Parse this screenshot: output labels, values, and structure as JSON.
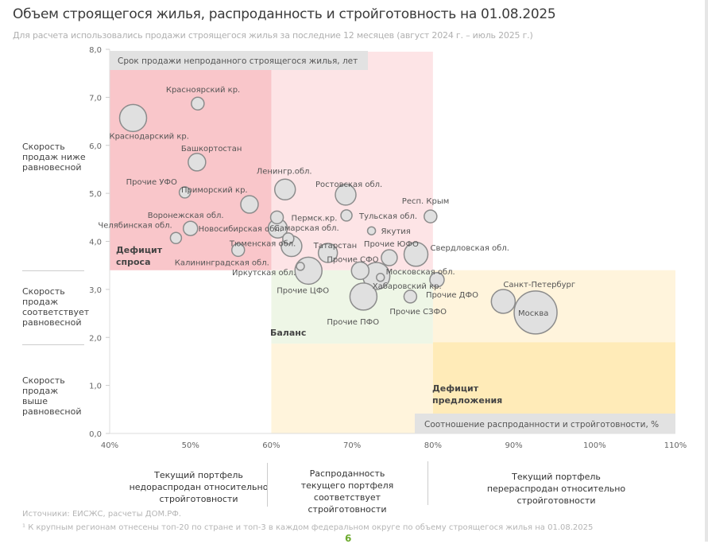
{
  "title": "Объем строящегося жилья, распроданность и стройготовность на 01.08.2025",
  "subtitle": "Для расчета использовались продажи строящегося жилья за последние 12 месяцев (август 2024 г. – июль 2025 г.)",
  "y_zone_labels": [
    "Скорость продаж ниже равновесной",
    "Скорость продаж соответствует равновесной",
    "Скорость продаж выше равновесной"
  ],
  "x_zone_labels": [
    "Текущий портфель недораспродан относительно стройготовности",
    "Распроданность текущего портфеля соответствует стройготовности",
    "Текущий портфель перераспродан относительно стройготовности"
  ],
  "footnotes": {
    "sources": "Источники: ЕИСЖС, расчеты ДОМ.РФ.",
    "note": "¹ К крупным регионам отнесены топ-20 по стране и топ-3 в каждом федеральном округе по объему строящегося жилья на 01.08.2025"
  },
  "page_number": "6",
  "chart_data": {
    "type": "scatter",
    "subtype": "bubble",
    "ylabel": "Срок продажи непроданного строящегося жилья, лет",
    "xlabel": "Соотношение распроданности и стройготовности, %",
    "xlim": [
      40,
      110
    ],
    "ylim": [
      0,
      8
    ],
    "x_ticks": [
      "40%",
      "50%",
      "60%",
      "70%",
      "80%",
      "90%",
      "100%",
      "110%"
    ],
    "y_ticks": [
      "0,0",
      "1,0",
      "2,0",
      "3,0",
      "4,0",
      "5,0",
      "6,0",
      "7,0",
      "8,0"
    ],
    "grid": false,
    "zones": [
      {
        "label": "",
        "x": [
          40,
          80
        ],
        "y": [
          3.4,
          7.95
        ],
        "color": "#fde4e6"
      },
      {
        "label": "Дефицит спроса",
        "x": [
          40,
          60
        ],
        "y": [
          3.4,
          7.6
        ],
        "color": "#f9c6ca"
      },
      {
        "label": "Баланс",
        "x": [
          60,
          80
        ],
        "y": [
          1.87,
          3.4
        ],
        "color": "#eef6e6"
      },
      {
        "label": "",
        "x": [
          60,
          80
        ],
        "y": [
          0,
          1.87
        ],
        "color": "#fff4dc"
      },
      {
        "label": "",
        "x": [
          80,
          110
        ],
        "y": [
          1.9,
          3.4
        ],
        "color": "#fff4dc"
      },
      {
        "label": "Дефицит предложения",
        "x": [
          80,
          110
        ],
        "y": [
          0,
          1.9
        ],
        "color": "#ffebb8"
      }
    ],
    "bubble_color": "#e0e0e0",
    "bubble_stroke": "#8c8c8c",
    "points": [
      {
        "name": "Краснодарский кр.",
        "x": 42.9,
        "y": 6.57,
        "size": 17
      },
      {
        "name": "Красноярский кр.",
        "x": 50.9,
        "y": 6.87,
        "size": 8
      },
      {
        "name": "Башкортостан",
        "x": 50.8,
        "y": 5.65,
        "size": 11
      },
      {
        "name": "Прочие УФО",
        "x": 49.3,
        "y": 5.02,
        "size": 7
      },
      {
        "name": "Приморский кр.",
        "x": 57.3,
        "y": 4.77,
        "size": 11
      },
      {
        "name": "Ленингр.обл.",
        "x": 61.7,
        "y": 5.08,
        "size": 13
      },
      {
        "name": "Ростовская обл.",
        "x": 69.2,
        "y": 4.97,
        "size": 13
      },
      {
        "name": "Пермск.кр.",
        "x": 60.7,
        "y": 4.5,
        "size": 8
      },
      {
        "name": "Тульская обл.",
        "x": 69.3,
        "y": 4.54,
        "size": 7
      },
      {
        "name": "Респ. Крым",
        "x": 79.7,
        "y": 4.52,
        "size": 8
      },
      {
        "name": "Якутия",
        "x": 72.4,
        "y": 4.22,
        "size": 5
      },
      {
        "name": "Новосибирская обл.",
        "x": 60.8,
        "y": 4.27,
        "size": 12
      },
      {
        "name": "Воронежская обл.",
        "x": 50.0,
        "y": 4.27,
        "size": 9
      },
      {
        "name": "Челябинская обл.",
        "x": 48.2,
        "y": 4.07,
        "size": 7
      },
      {
        "name": "Самарская обл.",
        "x": 62.1,
        "y": 4.06,
        "size": 7
      },
      {
        "name": "Тюменская обл.",
        "x": 62.5,
        "y": 3.9,
        "size": 13
      },
      {
        "name": "Татарстан",
        "x": 67.0,
        "y": 3.76,
        "size": 12
      },
      {
        "name": "Калининградская обл.",
        "x": 55.9,
        "y": 3.82,
        "size": 8
      },
      {
        "name": "Иркутская обл.",
        "x": 63.6,
        "y": 3.48,
        "size": 5
      },
      {
        "name": "Прочие ЦФО",
        "x": 64.6,
        "y": 3.39,
        "size": 17
      },
      {
        "name": "Прочие СФО",
        "x": 71.0,
        "y": 3.39,
        "size": 11
      },
      {
        "name": "Прочие ЮФО",
        "x": 74.6,
        "y": 3.66,
        "size": 10
      },
      {
        "name": "Свердловская обл.",
        "x": 77.9,
        "y": 3.73,
        "size": 15
      },
      {
        "name": "Московская обл.",
        "x": 73.0,
        "y": 3.28,
        "size": 17
      },
      {
        "name": "Хабаровский кр.",
        "x": 73.5,
        "y": 3.25,
        "size": 5
      },
      {
        "name": "Прочие ПФО",
        "x": 71.4,
        "y": 2.85,
        "size": 17
      },
      {
        "name": "Прочие СЗФО",
        "x": 77.2,
        "y": 2.85,
        "size": 8
      },
      {
        "name": "Прочие ДФО",
        "x": 80.5,
        "y": 3.2,
        "size": 9
      },
      {
        "name": "Санкт-Петербург",
        "x": 88.7,
        "y": 2.75,
        "size": 15
      },
      {
        "name": "Москва",
        "x": 92.7,
        "y": 2.52,
        "size": 27
      }
    ]
  }
}
